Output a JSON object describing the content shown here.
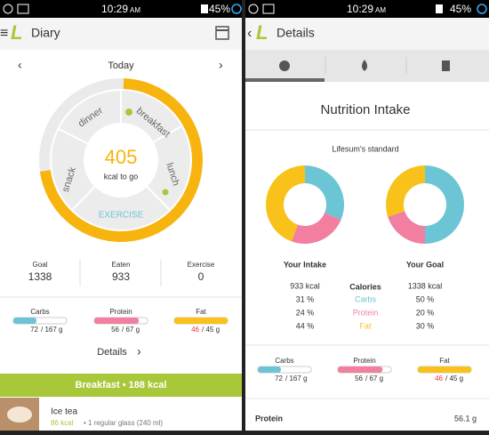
{
  "left": {
    "status": {
      "time": "10:29",
      "ampm": "AM",
      "battery": "45%"
    },
    "header": {
      "title": "Diary"
    },
    "day": "Today",
    "ring": {
      "dinner": "dinner",
      "breakfast": "breakfast",
      "lunch": "lunch",
      "snack": "snack",
      "exercise": "EXERCISE",
      "remaining": "405",
      "remaining_label": "kcal to go"
    },
    "stats": [
      {
        "label": "Goal",
        "value": "1338"
      },
      {
        "label": "Eaten",
        "value": "933"
      },
      {
        "label": "Exercise",
        "value": "0"
      }
    ],
    "macros": [
      {
        "name": "Carbs",
        "eaten": 72,
        "goal": {
          "value": 167,
          "label": "/ 167 g"
        }
      },
      {
        "name": "Protein",
        "eaten": 56,
        "goal": {
          "value": 67,
          "label": "/ 67 g"
        }
      },
      {
        "name": "Fat",
        "eaten": 46,
        "goal": {
          "value": 45,
          "label": "/ 45 g"
        }
      }
    ],
    "details": "Details",
    "meal": {
      "title": "Breakfast • 188 kcal",
      "items": [
        {
          "name": "Ice tea",
          "kcal": "86 kcal",
          "serving": "• 1 regular glass (240 ml)"
        }
      ]
    }
  },
  "right": {
    "status": {
      "time": "10:29",
      "ampm": "AM",
      "battery": "45%"
    },
    "header": {
      "title": "Details"
    },
    "section_title": "Nutrition Intake",
    "standard": "Lifesum's standard",
    "intake": {
      "title": "Your Intake",
      "calories": "933 kcal",
      "shares": [
        {
          "value": 31,
          "label": "31 %"
        },
        {
          "value": 24,
          "label": "24 %"
        },
        {
          "value": 44,
          "label": "44 %"
        }
      ]
    },
    "goal": {
      "title": "Your Goal",
      "calories": "1338 kcal",
      "shares": [
        {
          "value": 50,
          "label": "50 %"
        },
        {
          "value": 20,
          "label": "20 %"
        },
        {
          "value": 30,
          "label": "30 %"
        }
      ]
    },
    "nutrients": {
      "title": "Calories",
      "names": [
        "Carbs",
        "Protein",
        "Fat"
      ],
      "colors": [
        "#6cc5d5",
        "#f27ea0",
        "#f9c21a"
      ]
    },
    "macros": [
      {
        "name": "Carbs",
        "eaten": 72,
        "goal": {
          "value": 167,
          "label": "/ 167 g"
        }
      },
      {
        "name": "Protein",
        "eaten": 56,
        "goal": {
          "value": 67,
          "label": "/ 67 g"
        }
      },
      {
        "name": "Fat",
        "eaten": 46,
        "goal": {
          "value": 45,
          "label": "/ 45 g"
        }
      }
    ],
    "nutrient_row": {
      "name": "Protein",
      "value": "56.1 g"
    }
  }
}
